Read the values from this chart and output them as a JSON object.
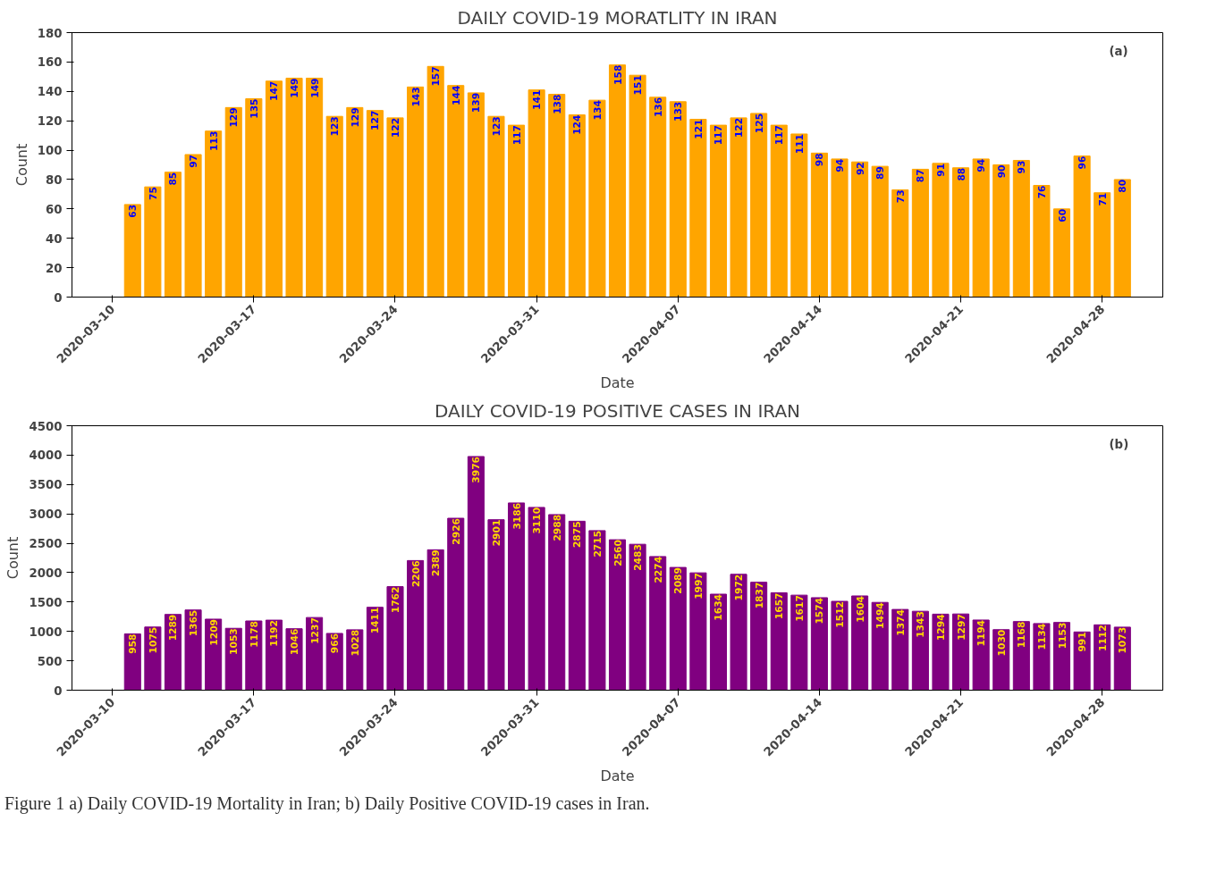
{
  "chart_data": [
    {
      "type": "bar",
      "title": "DAILY COVID-19 MORATLITY IN IRAN",
      "xlabel": "Date",
      "ylabel": "Count",
      "color": "#ffa500",
      "data_labels": true,
      "grid": false,
      "x": [
        "2020-03-11",
        "2020-03-12",
        "2020-03-13",
        "2020-03-14",
        "2020-03-15",
        "2020-03-16",
        "2020-03-17",
        "2020-03-18",
        "2020-03-19",
        "2020-03-20",
        "2020-03-21",
        "2020-03-22",
        "2020-03-23",
        "2020-03-24",
        "2020-03-25",
        "2020-03-26",
        "2020-03-27",
        "2020-03-28",
        "2020-03-29",
        "2020-03-30",
        "2020-03-31",
        "2020-04-01",
        "2020-04-02",
        "2020-04-03",
        "2020-04-04",
        "2020-04-05",
        "2020-04-06",
        "2020-04-07",
        "2020-04-08",
        "2020-04-09",
        "2020-04-10",
        "2020-04-11",
        "2020-04-12",
        "2020-04-13",
        "2020-04-14",
        "2020-04-15",
        "2020-04-16",
        "2020-04-17",
        "2020-04-18",
        "2020-04-19",
        "2020-04-20",
        "2020-04-21",
        "2020-04-22",
        "2020-04-23",
        "2020-04-24",
        "2020-04-25",
        "2020-04-26",
        "2020-04-27",
        "2020-04-28",
        "2020-04-29"
      ],
      "values": [
        63,
        75,
        85,
        97,
        113,
        129,
        135,
        147,
        149,
        149,
        123,
        129,
        127,
        122,
        143,
        157,
        144,
        139,
        123,
        117,
        141,
        138,
        124,
        134,
        158,
        151,
        136,
        133,
        121,
        117,
        122,
        125,
        117,
        111,
        98,
        94,
        92,
        89,
        73,
        87,
        91,
        88,
        94,
        90,
        93,
        76,
        60,
        96,
        71,
        80
      ],
      "xlim": [
        "2020-03-08",
        "2020-05-01"
      ],
      "xticks": [
        "2020-03-10",
        "2020-03-17",
        "2020-03-24",
        "2020-03-31",
        "2020-04-07",
        "2020-04-14",
        "2020-04-21",
        "2020-04-28"
      ],
      "ylim": [
        0,
        180
      ],
      "yticks": [
        0,
        20,
        40,
        60,
        80,
        100,
        120,
        140,
        160,
        180
      ],
      "annotations": [
        "(a)"
      ]
    },
    {
      "type": "bar",
      "title": "DAILY COVID-19 POSITIVE CASES IN IRAN",
      "xlabel": "Date",
      "ylabel": "Count",
      "color": "#800080",
      "data_labels": true,
      "grid": false,
      "x": [
        "2020-03-11",
        "2020-03-12",
        "2020-03-13",
        "2020-03-14",
        "2020-03-15",
        "2020-03-16",
        "2020-03-17",
        "2020-03-18",
        "2020-03-19",
        "2020-03-20",
        "2020-03-21",
        "2020-03-22",
        "2020-03-23",
        "2020-03-24",
        "2020-03-25",
        "2020-03-26",
        "2020-03-27",
        "2020-03-28",
        "2020-03-29",
        "2020-03-30",
        "2020-03-31",
        "2020-04-01",
        "2020-04-02",
        "2020-04-03",
        "2020-04-04",
        "2020-04-05",
        "2020-04-06",
        "2020-04-07",
        "2020-04-08",
        "2020-04-09",
        "2020-04-10",
        "2020-04-11",
        "2020-04-12",
        "2020-04-13",
        "2020-04-14",
        "2020-04-15",
        "2020-04-16",
        "2020-04-17",
        "2020-04-18",
        "2020-04-19",
        "2020-04-20",
        "2020-04-21",
        "2020-04-22",
        "2020-04-23",
        "2020-04-24",
        "2020-04-25",
        "2020-04-26",
        "2020-04-27",
        "2020-04-28",
        "2020-04-29"
      ],
      "values": [
        958,
        1075,
        1289,
        1365,
        1209,
        1053,
        1178,
        1192,
        1046,
        1237,
        966,
        1028,
        1411,
        1762,
        2206,
        2389,
        2926,
        3976,
        2901,
        3186,
        3110,
        2988,
        2875,
        2715,
        2560,
        2483,
        2274,
        2089,
        1997,
        1634,
        1972,
        1837,
        1657,
        1617,
        1574,
        1512,
        1604,
        1494,
        1374,
        1343,
        1294,
        1297,
        1194,
        1030,
        1168,
        1134,
        1153,
        991,
        1112,
        1073
      ],
      "xlim": [
        "2020-03-08",
        "2020-05-01"
      ],
      "xticks": [
        "2020-03-10",
        "2020-03-17",
        "2020-03-24",
        "2020-03-31",
        "2020-04-07",
        "2020-04-14",
        "2020-04-21",
        "2020-04-28"
      ],
      "ylim": [
        0,
        4500
      ],
      "yticks": [
        0,
        500,
        1000,
        1500,
        2000,
        2500,
        3000,
        3500,
        4000,
        4500
      ],
      "annotations": [
        "(b)",
        "Figure 1 a) Daily COVID-19 Mortality in Iran; b) Daily Positive COVID-19 cases in Iran."
      ]
    }
  ]
}
